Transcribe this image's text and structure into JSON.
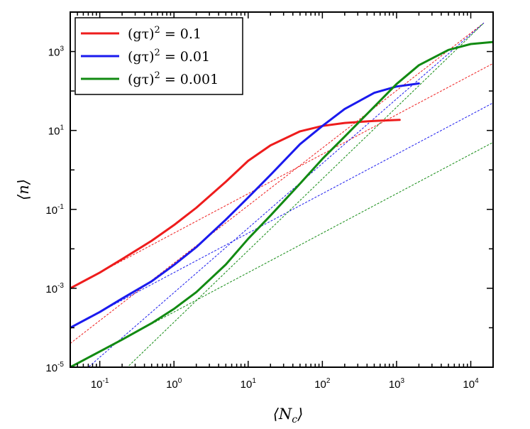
{
  "chart_data": {
    "type": "line",
    "xscale": "log",
    "yscale": "log",
    "xlim": [
      0.04,
      20000
    ],
    "ylim": [
      1e-05,
      10000
    ],
    "xlabel": "⟨N_c⟩",
    "ylabel": "⟨n⟩",
    "grid": false,
    "legend_position": "top-left",
    "xticks": [
      {
        "value": 0.1,
        "base": "10",
        "exp": "-1"
      },
      {
        "value": 1,
        "base": "10",
        "exp": "0"
      },
      {
        "value": 10,
        "base": "10",
        "exp": "1"
      },
      {
        "value": 100,
        "base": "10",
        "exp": "2"
      },
      {
        "value": 1000,
        "base": "10",
        "exp": "3"
      },
      {
        "value": 10000,
        "base": "10",
        "exp": "4"
      }
    ],
    "yticks": [
      {
        "value": 1e-05,
        "base": "10",
        "exp": "-5"
      },
      {
        "value": 0.001,
        "base": "10",
        "exp": "-3"
      },
      {
        "value": 0.1,
        "base": "10",
        "exp": "-1"
      },
      {
        "value": 10,
        "base": "10",
        "exp": "1"
      },
      {
        "value": 1000,
        "base": "10",
        "exp": "3"
      }
    ],
    "series": [
      {
        "name": "(gτ)² = 0.1",
        "label_main": "(gτ)",
        "label_sup": "2",
        "label_value": "= 0.1",
        "color": "#ee1c1c",
        "x": [
          0.04,
          0.1,
          0.2,
          0.5,
          1,
          2,
          5,
          10,
          20,
          50,
          100,
          200,
          500,
          1100
        ],
        "y": [
          0.001,
          0.0025,
          0.0055,
          0.016,
          0.04,
          0.11,
          0.5,
          1.7,
          4.2,
          9.5,
          13,
          15.5,
          17.5,
          18.5
        ]
      },
      {
        "name": "(gτ)² = 0.01",
        "label_main": "(gτ)",
        "label_sup": "2",
        "label_value": "= 0.01",
        "color": "#1a1aee",
        "x": [
          0.04,
          0.1,
          0.2,
          0.5,
          1,
          2,
          5,
          10,
          20,
          50,
          100,
          200,
          500,
          1000,
          2000
        ],
        "y": [
          0.0001,
          0.00025,
          0.00055,
          0.0015,
          0.0039,
          0.011,
          0.055,
          0.2,
          0.75,
          4.5,
          13,
          35,
          90,
          130,
          155
        ]
      },
      {
        "name": "(gτ)² = 0.001",
        "label_main": "(gτ)",
        "label_sup": "2",
        "label_value": "= 0.001",
        "color": "#128a12",
        "x": [
          0.04,
          0.1,
          0.2,
          0.5,
          1,
          2,
          5,
          10,
          20,
          50,
          100,
          200,
          500,
          1000,
          2000,
          5000,
          10000,
          20000
        ],
        "y": [
          1e-05,
          2.5e-05,
          5e-05,
          0.00013,
          0.0003,
          0.0008,
          0.004,
          0.018,
          0.07,
          0.45,
          1.9,
          7,
          40,
          150,
          450,
          1100,
          1550,
          1750
        ]
      }
    ],
    "asymptotes": [
      {
        "color": "#ee1c1c",
        "points": [
          [
            0.04,
            4e-05
          ],
          [
            15000,
            5300
          ]
        ]
      },
      {
        "color": "#ee1c1c",
        "points": [
          [
            0.04,
            0.001
          ],
          [
            20000,
            500
          ]
        ]
      },
      {
        "color": "#1a1aee",
        "points": [
          [
            0.04,
            4e-06
          ],
          [
            15000,
            5300
          ]
        ]
      },
      {
        "color": "#1a1aee",
        "points": [
          [
            0.04,
            0.0001
          ],
          [
            20000,
            50
          ]
        ]
      },
      {
        "color": "#128a12",
        "points": [
          [
            0.04,
            4e-07
          ],
          [
            15000,
            5300
          ]
        ]
      },
      {
        "color": "#128a12",
        "points": [
          [
            0.04,
            1e-05
          ],
          [
            20000,
            5
          ]
        ]
      }
    ]
  }
}
